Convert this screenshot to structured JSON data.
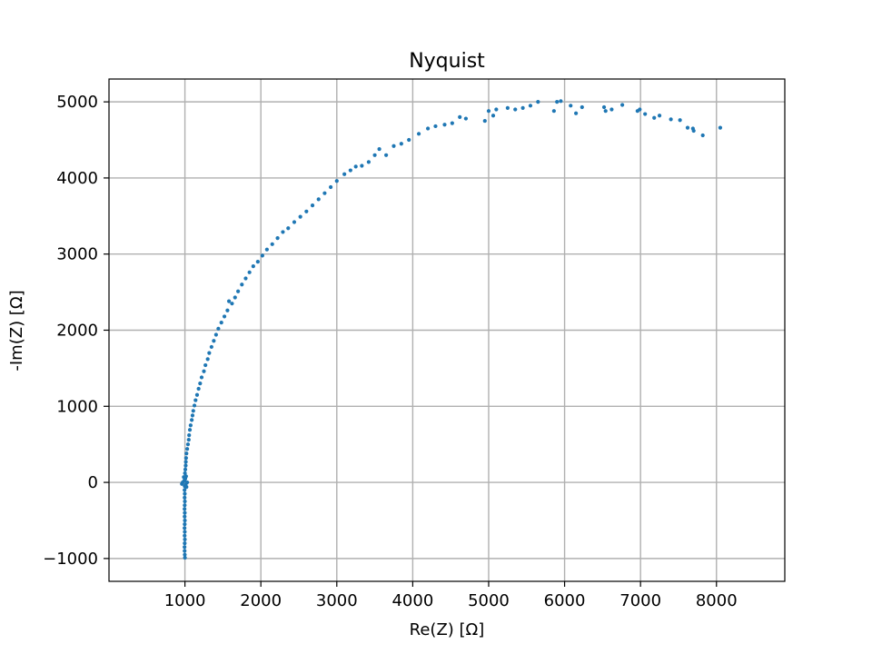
{
  "chart_data": {
    "type": "scatter",
    "title": "Nyquist",
    "xlabel": "Re(Z) [Ω]",
    "ylabel": "-Im(Z) [Ω]",
    "xlim": [
      0,
      8900
    ],
    "ylim": [
      -1300,
      5300
    ],
    "xticks": [
      1000,
      2000,
      3000,
      4000,
      5000,
      6000,
      7000,
      8000
    ],
    "xtick_labels": [
      "1000",
      "2000",
      "3000",
      "4000",
      "5000",
      "6000",
      "7000",
      "8000"
    ],
    "yticks": [
      -1000,
      0,
      1000,
      2000,
      3000,
      4000,
      5000
    ],
    "ytick_labels": [
      "−1000",
      "0",
      "1000",
      "2000",
      "3000",
      "4000",
      "5000"
    ],
    "grid": true,
    "marker_color": "#1f77b4",
    "series": [
      {
        "points": [
          [
            1000,
            -990
          ],
          [
            998,
            -950
          ],
          [
            996,
            -900
          ],
          [
            995,
            -850
          ],
          [
            997,
            -800
          ],
          [
            999,
            -750
          ],
          [
            996,
            -700
          ],
          [
            998,
            -650
          ],
          [
            995,
            -600
          ],
          [
            997,
            -550
          ],
          [
            999,
            -500
          ],
          [
            996,
            -450
          ],
          [
            998,
            -400
          ],
          [
            995,
            -350
          ],
          [
            997,
            -300
          ],
          [
            999,
            -250
          ],
          [
            996,
            -200
          ],
          [
            998,
            -150
          ],
          [
            995,
            -100
          ],
          [
            997,
            -50
          ],
          [
            960,
            -20
          ],
          [
            970,
            0
          ],
          [
            990,
            20
          ],
          [
            1005,
            50
          ],
          [
            1015,
            80
          ],
          [
            1010,
            -30
          ],
          [
            1020,
            -60
          ],
          [
            1030,
            0
          ],
          [
            1000,
            40
          ],
          [
            985,
            70
          ],
          [
            1000,
            120
          ],
          [
            1005,
            170
          ],
          [
            1010,
            220
          ],
          [
            1012,
            270
          ],
          [
            1015,
            320
          ],
          [
            1020,
            380
          ],
          [
            1030,
            440
          ],
          [
            1040,
            500
          ],
          [
            1050,
            560
          ],
          [
            1055,
            620
          ],
          [
            1065,
            690
          ],
          [
            1075,
            750
          ],
          [
            1090,
            820
          ],
          [
            1100,
            880
          ],
          [
            1110,
            940
          ],
          [
            1125,
            1010
          ],
          [
            1140,
            1080
          ],
          [
            1160,
            1150
          ],
          [
            1180,
            1230
          ],
          [
            1200,
            1300
          ],
          [
            1220,
            1380
          ],
          [
            1250,
            1460
          ],
          [
            1270,
            1540
          ],
          [
            1300,
            1620
          ],
          [
            1320,
            1700
          ],
          [
            1350,
            1780
          ],
          [
            1380,
            1860
          ],
          [
            1410,
            1940
          ],
          [
            1440,
            2020
          ],
          [
            1480,
            2100
          ],
          [
            1520,
            2180
          ],
          [
            1560,
            2260
          ],
          [
            1580,
            2380
          ],
          [
            1620,
            2350
          ],
          [
            1660,
            2430
          ],
          [
            1700,
            2510
          ],
          [
            1750,
            2600
          ],
          [
            1800,
            2680
          ],
          [
            1850,
            2760
          ],
          [
            1900,
            2840
          ],
          [
            1960,
            2900
          ],
          [
            2020,
            2980
          ],
          [
            2080,
            3060
          ],
          [
            2150,
            3130
          ],
          [
            2220,
            3210
          ],
          [
            2290,
            3290
          ],
          [
            2360,
            3340
          ],
          [
            2440,
            3420
          ],
          [
            2520,
            3490
          ],
          [
            2600,
            3560
          ],
          [
            2680,
            3640
          ],
          [
            2760,
            3720
          ],
          [
            2840,
            3800
          ],
          [
            2920,
            3880
          ],
          [
            3000,
            3960
          ],
          [
            3100,
            4050
          ],
          [
            3180,
            4100
          ],
          [
            3250,
            4150
          ],
          [
            3330,
            4160
          ],
          [
            3420,
            4210
          ],
          [
            3500,
            4300
          ],
          [
            3560,
            4380
          ],
          [
            3650,
            4300
          ],
          [
            3750,
            4420
          ],
          [
            3850,
            4450
          ],
          [
            3950,
            4500
          ],
          [
            4080,
            4580
          ],
          [
            4200,
            4650
          ],
          [
            4300,
            4680
          ],
          [
            4420,
            4700
          ],
          [
            4520,
            4720
          ],
          [
            4620,
            4800
          ],
          [
            4700,
            4780
          ],
          [
            4950,
            4750
          ],
          [
            5000,
            4880
          ],
          [
            5060,
            4820
          ],
          [
            5100,
            4900
          ],
          [
            5250,
            4920
          ],
          [
            5350,
            4900
          ],
          [
            5450,
            4920
          ],
          [
            5550,
            4950
          ],
          [
            5650,
            5000
          ],
          [
            5860,
            4880
          ],
          [
            5900,
            5000
          ],
          [
            5950,
            5010
          ],
          [
            6080,
            4950
          ],
          [
            6150,
            4850
          ],
          [
            6230,
            4930
          ],
          [
            6520,
            4930
          ],
          [
            6540,
            4880
          ],
          [
            6620,
            4900
          ],
          [
            6760,
            4960
          ],
          [
            6960,
            4880
          ],
          [
            6990,
            4900
          ],
          [
            7060,
            4840
          ],
          [
            7180,
            4790
          ],
          [
            7250,
            4820
          ],
          [
            7400,
            4770
          ],
          [
            7520,
            4760
          ],
          [
            7620,
            4660
          ],
          [
            7690,
            4650
          ],
          [
            7700,
            4620
          ],
          [
            7820,
            4560
          ],
          [
            8050,
            4660
          ]
        ]
      }
    ]
  }
}
